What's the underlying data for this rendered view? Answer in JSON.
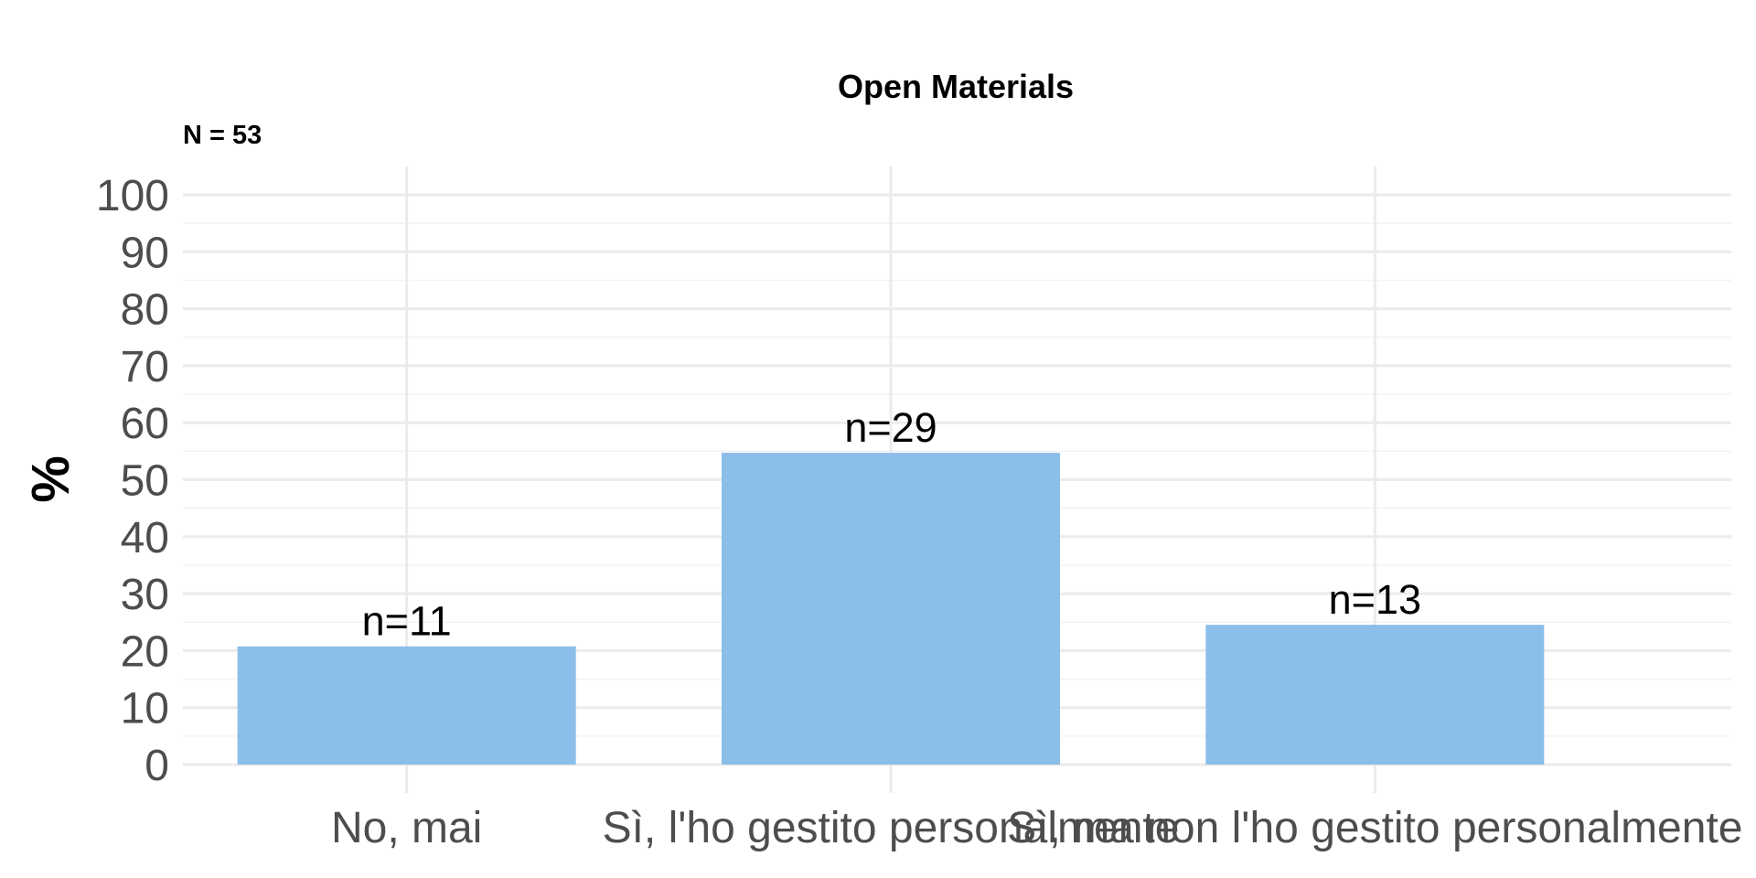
{
  "chart_data": {
    "type": "bar",
    "title": "Open Materials",
    "subtitle": "N = 53",
    "xlabel": "",
    "ylabel": "%",
    "categories": [
      "No, mai",
      "Sì, l'ho gestito personalmente",
      "Sì, ma non l'ho gestito personalmente"
    ],
    "values": [
      20.75,
      54.72,
      24.53
    ],
    "labels": [
      "n=11",
      "n=29",
      "n=13"
    ],
    "ylim": [
      0,
      100
    ],
    "yticks": [
      0,
      10,
      20,
      30,
      40,
      50,
      60,
      70,
      80,
      90,
      100
    ],
    "grid": true,
    "legend": "none",
    "bar_color": "#8bbee8"
  }
}
